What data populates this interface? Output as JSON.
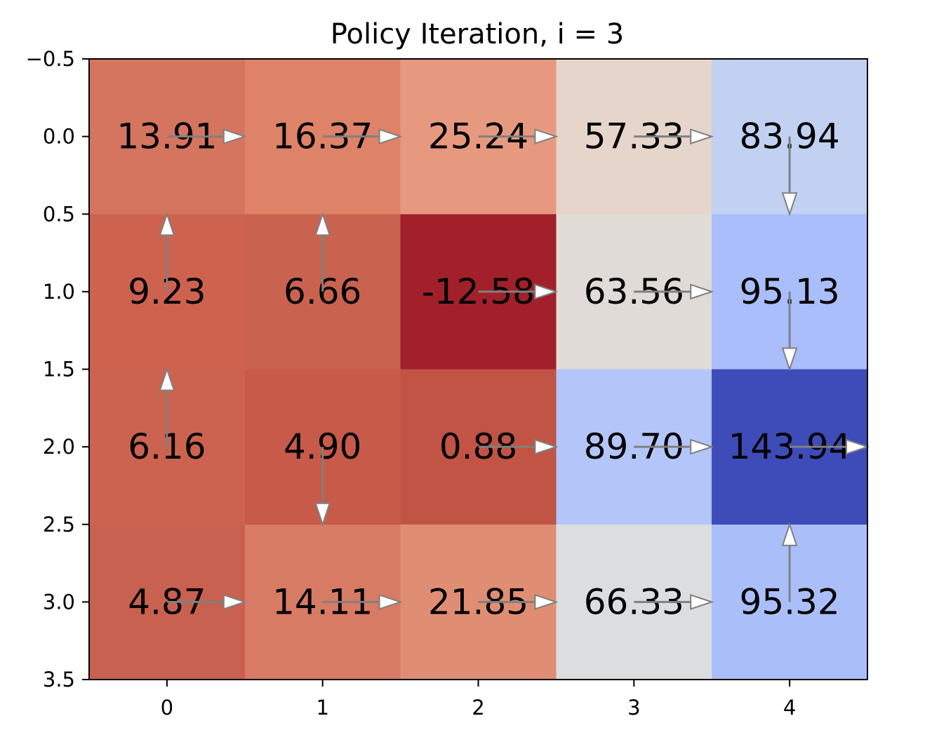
{
  "chart_data": {
    "type": "heatmap",
    "title": "Policy Iteration, i = 3",
    "xlabel": "",
    "ylabel": "",
    "xlim": [
      -0.5,
      4.5
    ],
    "ylim": [
      3.5,
      -0.5
    ],
    "x_ticks": [
      "0",
      "1",
      "2",
      "3",
      "4"
    ],
    "y_ticks": [
      "−0.5",
      "0.0",
      "0.5",
      "1.0",
      "1.5",
      "2.0",
      "2.5",
      "3.0",
      "3.5"
    ],
    "colormap": "coolwarm_r",
    "grid": false,
    "values": [
      [
        13.91,
        16.37,
        25.24,
        57.33,
        83.94
      ],
      [
        9.23,
        6.66,
        -12.58,
        63.56,
        95.13
      ],
      [
        6.16,
        4.9,
        0.88,
        89.7,
        143.94
      ],
      [
        4.87,
        14.11,
        21.85,
        66.33,
        95.32
      ]
    ],
    "labels": [
      [
        "13.91",
        "16.37",
        "25.24",
        "57.33",
        "83.94"
      ],
      [
        "9.23",
        "6.66",
        "-12.58",
        "63.56",
        "95.13"
      ],
      [
        "6.16",
        "4.90",
        "0.88",
        "89.70",
        "143.94"
      ],
      [
        "4.87",
        "14.11",
        "21.85",
        "66.33",
        "95.32"
      ]
    ],
    "policy_arrows": [
      [
        "right",
        "right",
        "right",
        "right",
        "down"
      ],
      [
        "up",
        "up",
        "right",
        "right",
        "down"
      ],
      [
        "up",
        "down",
        "right",
        "right",
        "right"
      ],
      [
        "right",
        "right",
        "right",
        "right",
        "up"
      ]
    ],
    "cell_colors": [
      [
        "#d57560",
        "#de8368",
        "#e7997f",
        "#e6d5ca",
        "#c2d0f2"
      ],
      [
        "#cd624f",
        "#c96350",
        "#a1202a",
        "#e0dbd7",
        "#a9befa"
      ],
      [
        "#cc6350",
        "#c85a49",
        "#c15444",
        "#b4c6f9",
        "#3e4cb9"
      ],
      [
        "#c86150",
        "#d77b65",
        "#e08e73",
        "#dcdddf",
        "#aabffa"
      ]
    ],
    "arrow_colors": {
      "stroke": "#808080",
      "fill": "#ffffff"
    }
  }
}
